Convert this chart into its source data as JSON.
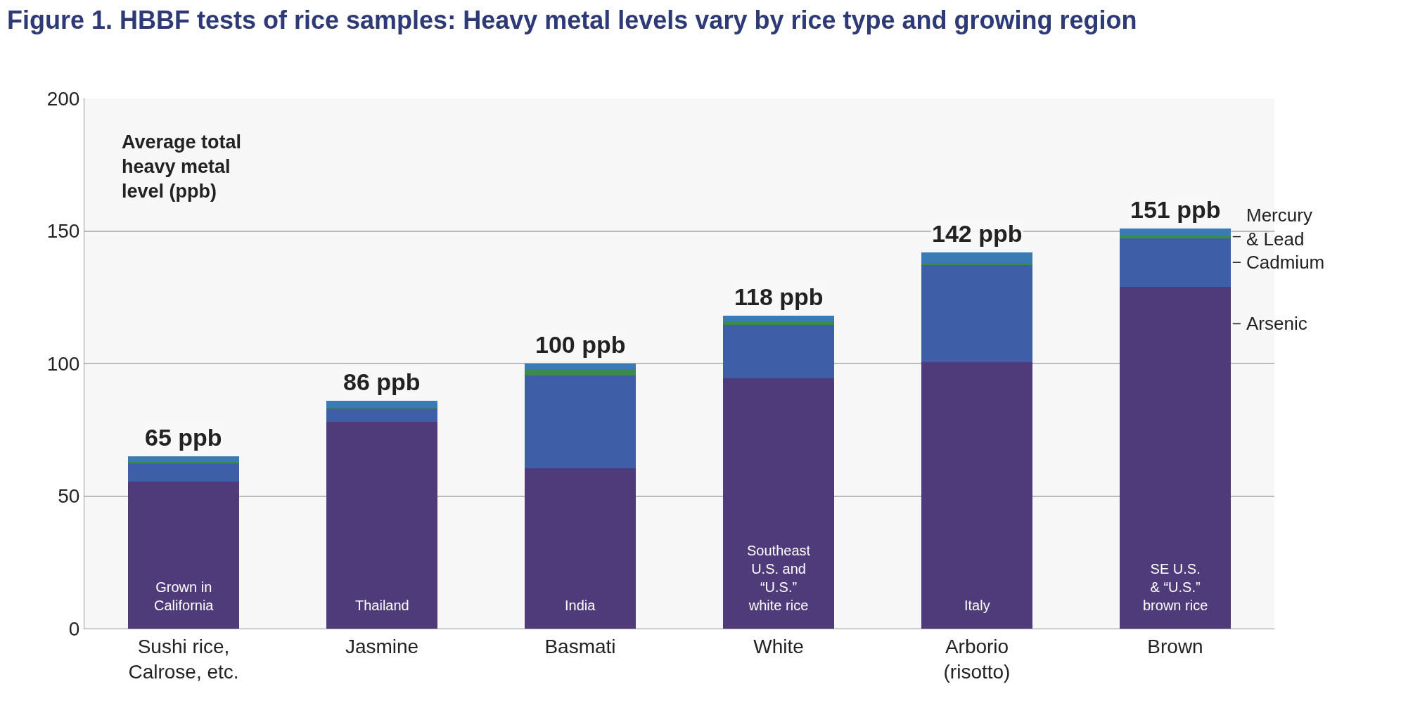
{
  "chart_data": {
    "type": "bar",
    "title": "Figure 1. HBBF tests of rice samples: Heavy metal levels vary by rice type and growing region",
    "categories": [
      "Sushi rice,\nCalrose, etc.",
      "Jasmine",
      "Basmati",
      "White",
      "Arborio\n(risotto)",
      "Brown"
    ],
    "series": [
      {
        "name": "Arsenic",
        "color": "#4f3a7a",
        "values": [
          55.4,
          78,
          60.6,
          94.5,
          100.5,
          129
        ]
      },
      {
        "name": "Cadmium",
        "color": "#3f5ea8",
        "values": [
          6.9,
          5,
          35,
          20,
          36.7,
          18.3
        ]
      },
      {
        "name": "Mercury\n& Lead",
        "color": "#3d8a50",
        "values": [
          0.6,
          0.6,
          2,
          1.2,
          0.7,
          1.1
        ]
      },
      {
        "color": "#3a7ab5",
        "values": [
          2.1,
          2.4,
          2.4,
          2.3,
          4.1,
          2.6
        ]
      }
    ],
    "stacked": true,
    "totals": [
      "65 ppb",
      "86 ppb",
      "100 ppb",
      "118 ppb",
      "142 ppb",
      "151 ppb"
    ],
    "ylim": [
      0,
      200
    ],
    "yticks": [
      0,
      50,
      100,
      150,
      200
    ],
    "grid": "y",
    "legend": false,
    "annotations": [
      "Average total\nheavy metal\nlevel (ppb)",
      "Grown in\nCalifornia",
      "Thailand",
      "India",
      "Southeast\nU.S. and\n“U.S.”\nwhite rice",
      "Italy",
      "SE U.S.\n& “U.S.”\nbrown rice"
    ]
  }
}
